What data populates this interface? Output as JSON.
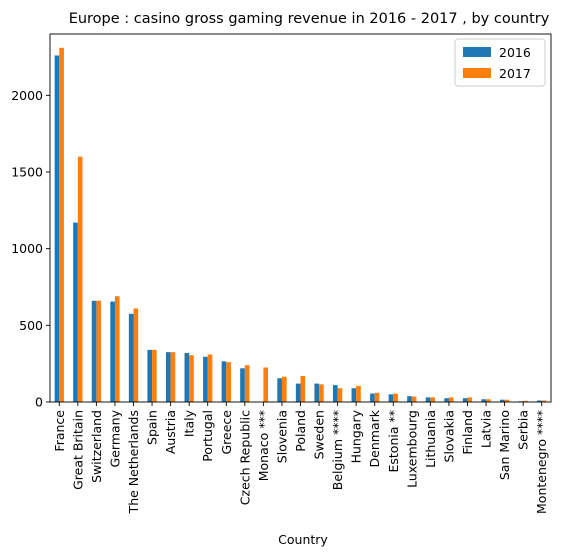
{
  "chart_data": {
    "type": "bar",
    "title": "Europe : casino gross gaming revenue in 2016 - 2017 , by country",
    "xlabel": "Country",
    "ylabel": "",
    "ylim": [
      0,
      2400
    ],
    "yticks": [
      0,
      500,
      1000,
      1500,
      2000
    ],
    "grid": false,
    "legend_position": "top-right",
    "categories": [
      "France",
      "Great Britain",
      "Switzerland",
      "Germany",
      "The Netherlands",
      "Spain",
      "Austria",
      "Italy",
      "Portugal",
      "Greece",
      "Czech Republic",
      "Monaco ***",
      "Slovenia",
      "Poland",
      "Sweden",
      "Belgium ****",
      "Hungary",
      "Denmark",
      "Estonia **",
      "Luxembourg",
      "Lithuania",
      "Slovakia",
      "Finland",
      "Latvia",
      "San Marino",
      "Serbia",
      "Montenegro ****"
    ],
    "series": [
      {
        "name": "2016",
        "color": "#1f77b4",
        "values": [
          2260,
          1170,
          660,
          655,
          575,
          340,
          325,
          320,
          295,
          265,
          220,
          0,
          155,
          120,
          120,
          110,
          90,
          55,
          50,
          38,
          30,
          25,
          25,
          18,
          15,
          5,
          10
        ]
      },
      {
        "name": "2017",
        "color": "#ff7f0e",
        "values": [
          2310,
          1600,
          660,
          690,
          610,
          340,
          325,
          305,
          310,
          260,
          240,
          225,
          165,
          170,
          115,
          90,
          105,
          60,
          55,
          35,
          30,
          30,
          30,
          18,
          15,
          8,
          10
        ]
      }
    ]
  }
}
